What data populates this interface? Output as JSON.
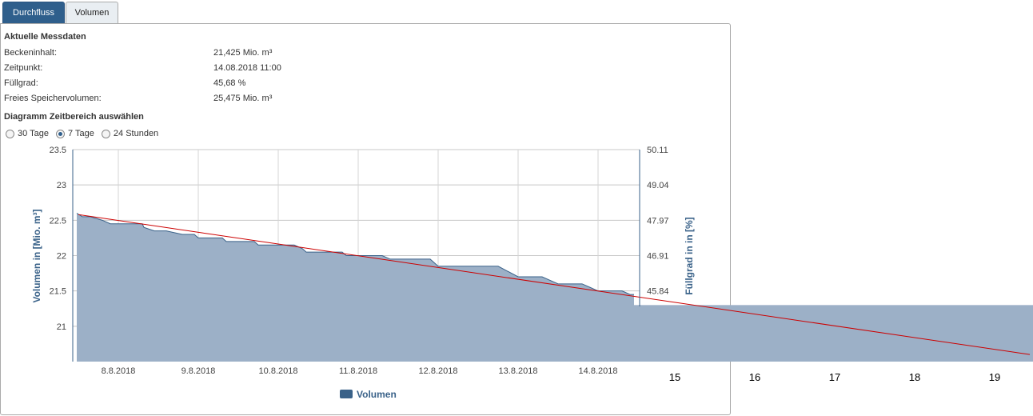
{
  "tabs": [
    {
      "label": "Durchfluss",
      "active": true
    },
    {
      "label": "Volumen",
      "active": false
    }
  ],
  "current": {
    "title": "Aktuelle Messdaten",
    "rows": [
      {
        "label": "Beckeninhalt:",
        "value": "21,425 Mio. m³"
      },
      {
        "label": "Zeitpunkt:",
        "value": "14.08.2018 11:00"
      },
      {
        "label": "Füllgrad:",
        "value": "45,68 %"
      },
      {
        "label": "Freies Speichervolumen:",
        "value": "25,475 Mio. m³"
      }
    ]
  },
  "range": {
    "title": "Diagramm Zeitbereich auswählen",
    "options": [
      {
        "label": "30 Tage",
        "checked": false
      },
      {
        "label": "7 Tage",
        "checked": true
      },
      {
        "label": "24 Stunden",
        "checked": false
      }
    ]
  },
  "colors": {
    "area_fill": "#9cb0c7",
    "area_stroke": "#3a6289",
    "trend": "#cc0000",
    "legend": "#3a6289"
  },
  "chart_data": {
    "type": "area",
    "ylabel": "Volumen in [Mio. m³]",
    "y2label": "Füllgrad in in [%]",
    "ylim": [
      20.5,
      23.5
    ],
    "yticks": [
      "23.5",
      "23",
      "22.5",
      "22",
      "21.5",
      "21"
    ],
    "y2ticks": [
      "50.11",
      "49.04",
      "47.97",
      "46.91",
      "45.84"
    ],
    "xticks": [
      "8.8.2018",
      "9.8.2018",
      "10.8.2018",
      "11.8.2018",
      "12.8.2018",
      "13.8.2018",
      "14.8.2018"
    ],
    "xticks_extra": [
      "15",
      "16",
      "17",
      "18",
      "19"
    ],
    "x_start": "7.8.2018",
    "grid": true,
    "series": [
      {
        "name": "Volumen",
        "x": [
          7.48,
          7.55,
          7.65,
          7.8,
          7.9,
          8.0,
          8.2,
          8.3,
          8.32,
          8.45,
          8.5,
          8.55,
          8.6,
          8.8,
          8.9,
          8.95,
          9.0,
          9.2,
          9.3,
          9.35,
          9.5,
          9.7,
          9.75,
          9.8,
          10.0,
          10.2,
          10.3,
          10.35,
          10.5,
          10.8,
          10.85,
          10.9,
          11.0,
          11.3,
          11.4,
          11.45,
          11.6,
          11.9,
          12.0,
          12.1,
          12.3,
          12.5,
          12.7,
          12.75,
          13.0,
          13.3,
          13.4,
          13.5,
          13.8,
          13.9,
          14.0,
          14.1,
          14.3,
          14.4,
          14.45
        ],
        "y": [
          22.6,
          22.55,
          22.55,
          22.5,
          22.45,
          22.45,
          22.45,
          22.45,
          22.4,
          22.35,
          22.35,
          22.35,
          22.35,
          22.3,
          22.3,
          22.3,
          22.25,
          22.25,
          22.25,
          22.2,
          22.2,
          22.2,
          22.15,
          22.15,
          22.15,
          22.15,
          22.1,
          22.05,
          22.05,
          22.05,
          22.0,
          22.0,
          22.0,
          22.0,
          21.95,
          21.95,
          21.95,
          21.95,
          21.85,
          21.85,
          21.85,
          21.85,
          21.85,
          21.85,
          21.7,
          21.7,
          21.65,
          21.6,
          21.6,
          21.55,
          21.5,
          21.5,
          21.5,
          21.45,
          21.45
        ]
      }
    ],
    "extended_area": {
      "x": [
        14.45,
        19.4
      ],
      "y": 21.3
    },
    "trend": {
      "x": [
        7.5,
        19.4
      ],
      "y": [
        22.58,
        20.6
      ]
    },
    "legend": [
      {
        "label": "Volumen"
      }
    ]
  }
}
